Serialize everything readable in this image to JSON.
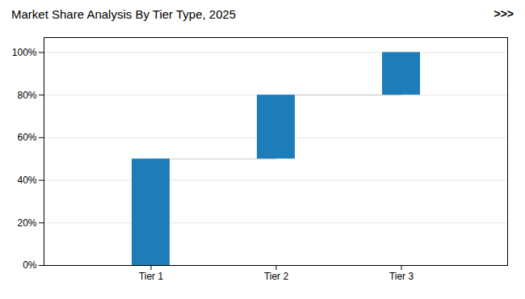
{
  "chart_data": {
    "type": "waterfall",
    "title": "Market Share Analysis By Tier Type, 2025",
    "annotations": [
      ">>>"
    ],
    "categories": [
      "Tier 1",
      "Tier 2",
      "Tier 3"
    ],
    "values": [
      50,
      30,
      20
    ],
    "color": "#1e7db8",
    "ylim": [
      0,
      107
    ],
    "yticks": [
      {
        "value": 0,
        "label": "0%"
      },
      {
        "value": 20,
        "label": "20%"
      },
      {
        "value": 40,
        "label": "40%"
      },
      {
        "value": 60,
        "label": "60%"
      },
      {
        "value": 80,
        "label": "80%"
      },
      {
        "value": 100,
        "label": "100%"
      }
    ],
    "grid": true
  }
}
